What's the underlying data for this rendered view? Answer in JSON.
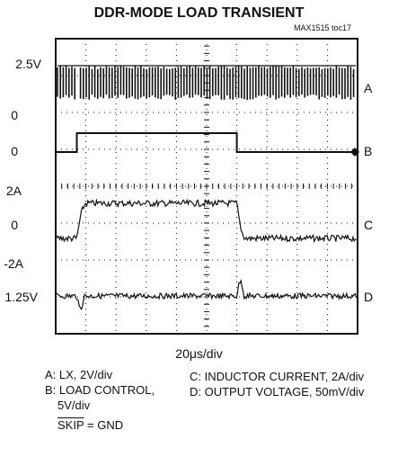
{
  "chart_data": {
    "type": "line",
    "title": "DDR-MODE LOAD TRANSIENT",
    "figure_id": "MAX1515 toc17",
    "x_axis": {
      "label": "20μs/div",
      "divisions": 10,
      "units_per_div_us": 20,
      "range_us": [
        0,
        200
      ]
    },
    "y_axis": {
      "divisions": 8
    },
    "left_labels": [
      "2.5V",
      "0",
      "0",
      "2A",
      "0",
      "-2A",
      "1.25V"
    ],
    "right_labels": [
      "A",
      "B",
      "C",
      "D"
    ],
    "series": [
      {
        "name": "A: LX, 2V/div",
        "trace": "A",
        "scale": "2V/div",
        "high_V": 2.5,
        "low_V": 0
      },
      {
        "name": "B: LOAD CONTROL, 5V/div",
        "trace": "B",
        "scale": "5V/div",
        "high_V": 5,
        "low_V": 0,
        "step_on_us": 14,
        "step_off_us": 120
      },
      {
        "name": "C: INDUCTOR CURRENT, 2A/div",
        "trace": "C",
        "scale": "2A/div",
        "low_A": 0,
        "high_A": 2
      },
      {
        "name": "D: OUTPUT VOLTAGE, 50mV/div",
        "trace": "D",
        "scale": "50mV/div",
        "nominal_V": 1.25
      }
    ],
    "notes_left": [
      "A: LX, 2V/div",
      "B: LOAD CONTROL,",
      "5V/div"
    ],
    "notes_right": [
      "C: INDUCTOR CURRENT, 2A/div",
      "D: OUTPUT VOLTAGE, 50mV/div"
    ],
    "skip_note": {
      "signal": "SKIP",
      "rest": " = GND"
    },
    "colors": {
      "trace": "#111111",
      "grid": "#111111",
      "background": "#ffffff"
    }
  }
}
